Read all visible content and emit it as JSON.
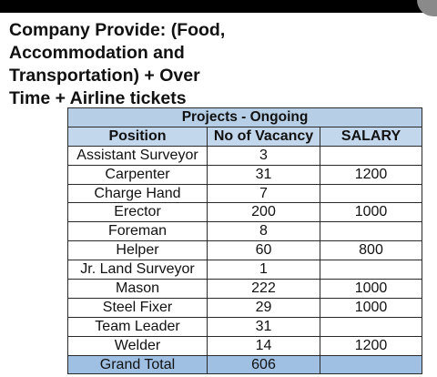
{
  "heading": {
    "lines": [
      "Company Provide: (Food,",
      "Accommodation and",
      "Transportation) + Over",
      "Time + Airline tickets"
    ]
  },
  "table": {
    "title": "Projects - Ongoing",
    "columns": [
      "Position",
      "No of Vacancy",
      "SALARY"
    ],
    "rows": [
      {
        "position": "Assistant Surveyor",
        "vacancy": "3",
        "salary": ""
      },
      {
        "position": "Carpenter",
        "vacancy": "31",
        "salary": "1200"
      },
      {
        "position": "Charge Hand",
        "vacancy": "7",
        "salary": ""
      },
      {
        "position": "Erector",
        "vacancy": "200",
        "salary": "1000"
      },
      {
        "position": "Foreman",
        "vacancy": "8",
        "salary": ""
      },
      {
        "position": "Helper",
        "vacancy": "60",
        "salary": "800"
      },
      {
        "position": "Jr. Land Surveyor",
        "vacancy": "1",
        "salary": ""
      },
      {
        "position": "Mason",
        "vacancy": "222",
        "salary": "1000"
      },
      {
        "position": "Steel Fixer",
        "vacancy": "29",
        "salary": "1000"
      },
      {
        "position": "Team Leader",
        "vacancy": "31",
        "salary": ""
      },
      {
        "position": "Welder",
        "vacancy": "14",
        "salary": "1200"
      }
    ],
    "total": {
      "label": "Grand Total",
      "vacancy": "606",
      "salary": ""
    }
  },
  "colors": {
    "title_fill": "#b7cfe6",
    "header_fill": "#c3d7ec",
    "total_fill": "#9fc0e3",
    "border": "#2a2a2a"
  }
}
